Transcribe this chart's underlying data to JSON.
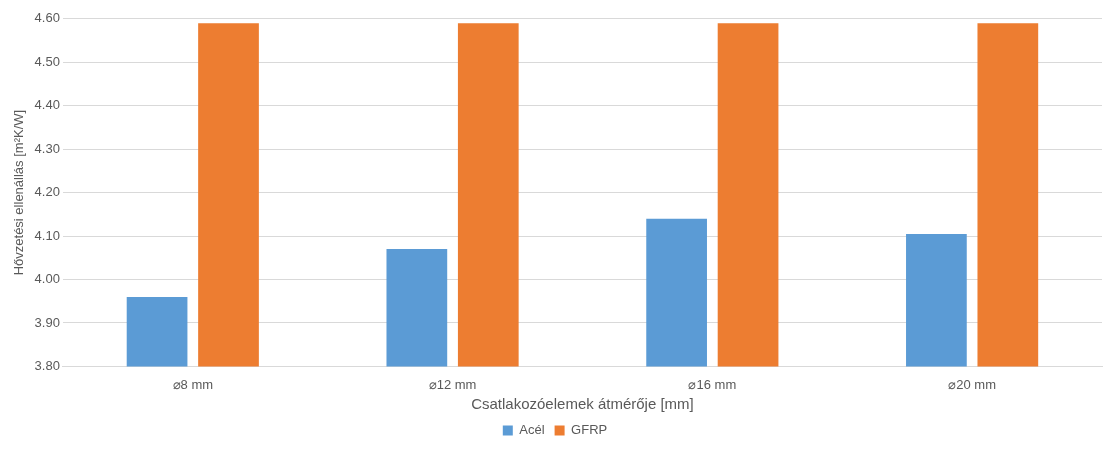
{
  "chart_data": {
    "type": "bar",
    "xlabel": "Csatlakozóelemek átmérője [mm]",
    "ylabel": "Hővzetési ellenállás [m²K/W]",
    "categories": [
      "⌀8 mm",
      "⌀12 mm",
      "⌀16 mm",
      "⌀20 mm"
    ],
    "series": [
      {
        "name": "Acél",
        "color": "#5b9bd5",
        "values": [
          3.96,
          4.07,
          4.14,
          4.105
        ]
      },
      {
        "name": "GFRP",
        "color": "#ed7d31",
        "values": [
          4.59,
          4.59,
          4.59,
          4.59
        ]
      }
    ],
    "ylim": [
      3.8,
      4.6
    ],
    "yticks": [
      {
        "value": 3.8,
        "label": "3.80"
      },
      {
        "value": 3.9,
        "label": "3.90"
      },
      {
        "value": 4.0,
        "label": "4.00"
      },
      {
        "value": 4.1,
        "label": "4.10"
      },
      {
        "value": 4.2,
        "label": "4.20"
      },
      {
        "value": 4.3,
        "label": "4.30"
      },
      {
        "value": 4.4,
        "label": "4.40"
      },
      {
        "value": 4.5,
        "label": "4.50"
      },
      {
        "value": 4.6,
        "label": "4.60"
      }
    ],
    "grid": "y",
    "legend": "bottom"
  }
}
